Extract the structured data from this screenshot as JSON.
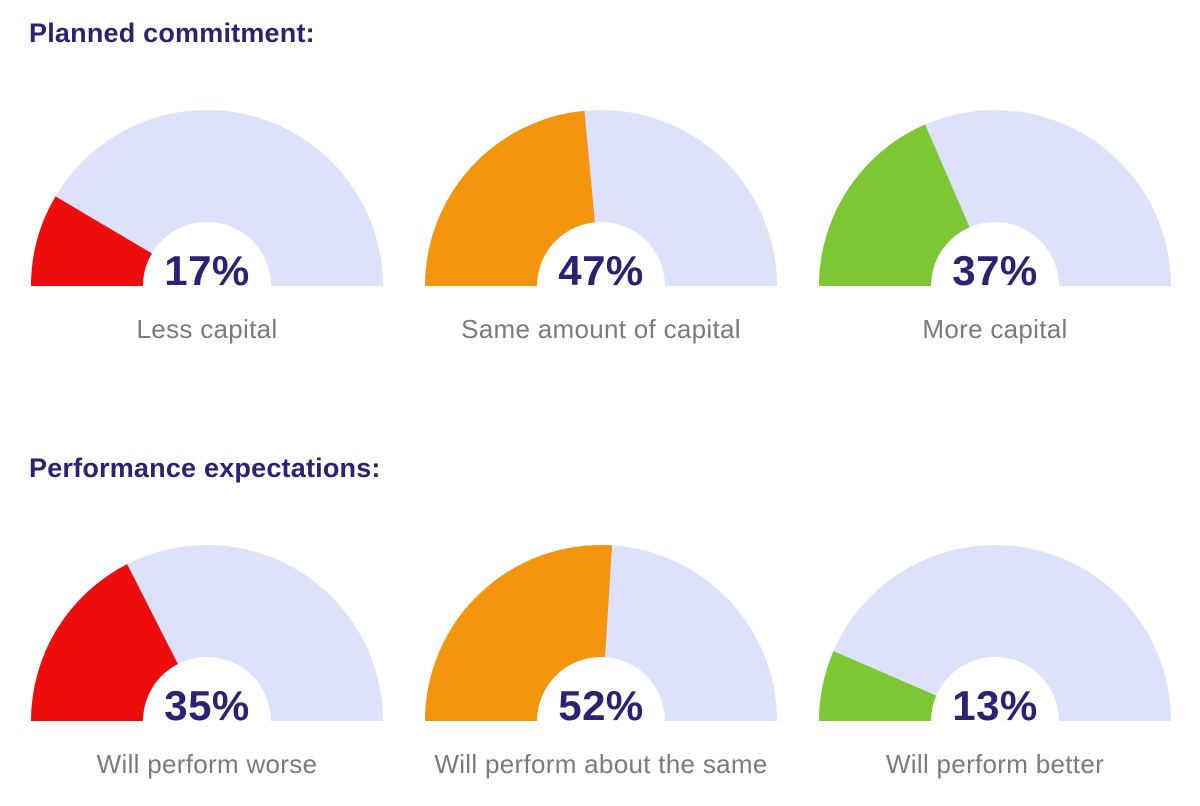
{
  "colors": {
    "heading": "#2d2173",
    "percent": "#2d2173",
    "label": "#7a7a7f",
    "track": "#dee1fa",
    "page_bg": "#ffffff",
    "red": "#ee0d0d",
    "orange": "#f3960d",
    "green": "#7ec734"
  },
  "chart_data": [
    {
      "type": "gauge-row",
      "title": "Planned commitment:",
      "gauge_style": "semicircle-donut, fill starts at left (180°), sweeps clockwise",
      "gauges": [
        {
          "label": "Less capital",
          "value": 17,
          "display": "17%",
          "color": "#ee0d0d"
        },
        {
          "label": "Same amount of capital",
          "value": 47,
          "display": "47%",
          "color": "#f3960d"
        },
        {
          "label": "More capital",
          "value": 37,
          "display": "37%",
          "color": "#7ec734"
        }
      ]
    },
    {
      "type": "gauge-row",
      "title": "Performance expectations:",
      "gauge_style": "semicircle-donut, fill starts at left (180°), sweeps clockwise",
      "gauges": [
        {
          "label": "Will perform worse",
          "value": 35,
          "display": "35%",
          "color": "#ee0d0d"
        },
        {
          "label": "Will perform about the same",
          "value": 52,
          "display": "52%",
          "color": "#f3960d"
        },
        {
          "label": "Will perform better",
          "value": 13,
          "display": "13%",
          "color": "#7ec734"
        }
      ]
    }
  ]
}
